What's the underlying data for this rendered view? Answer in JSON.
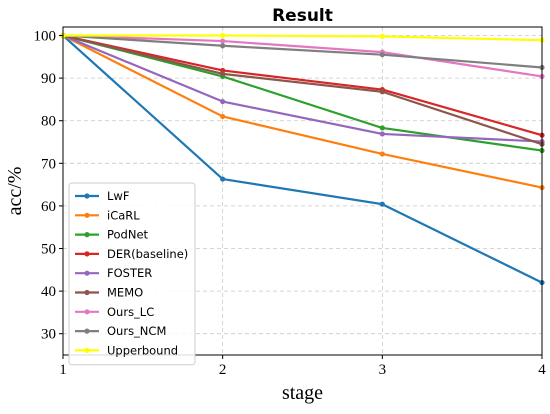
{
  "chart_data": {
    "type": "line",
    "title": "Result",
    "xlabel": "stage",
    "ylabel": "acc/%",
    "x": [
      1,
      2,
      3,
      4
    ],
    "xlim": [
      1,
      4
    ],
    "ylim": [
      25,
      102
    ],
    "xticks": [
      "1",
      "2",
      "3",
      "4"
    ],
    "yticks": [
      "30",
      "40",
      "50",
      "60",
      "70",
      "80",
      "90",
      "100"
    ],
    "grid": true,
    "legend_position": "lower-left",
    "series": [
      {
        "name": "LwF",
        "color": "#1f77b4",
        "values": [
          100,
          66.3,
          60.4,
          42.0
        ]
      },
      {
        "name": "iCaRL",
        "color": "#ff7f0e",
        "values": [
          100,
          81.0,
          72.2,
          64.3
        ]
      },
      {
        "name": "PodNet",
        "color": "#2ca02c",
        "values": [
          100,
          90.4,
          78.3,
          73.0
        ]
      },
      {
        "name": "DER(baseline)",
        "color": "#d62728",
        "values": [
          100,
          91.8,
          87.3,
          76.6
        ]
      },
      {
        "name": "FOSTER",
        "color": "#9467bd",
        "values": [
          100,
          84.5,
          76.9,
          75.1
        ]
      },
      {
        "name": "MEMO",
        "color": "#8c564b",
        "values": [
          100,
          91.0,
          86.8,
          74.5
        ]
      },
      {
        "name": "Ours_LC",
        "color": "#e377c2",
        "values": [
          100,
          98.7,
          96.1,
          90.4
        ]
      },
      {
        "name": "Ours_NCM",
        "color": "#7f7f7f",
        "values": [
          100,
          97.6,
          95.5,
          92.5
        ]
      },
      {
        "name": "Upperbound",
        "color": "#ffff00",
        "values": [
          100,
          100,
          99.8,
          98.9
        ]
      }
    ]
  }
}
